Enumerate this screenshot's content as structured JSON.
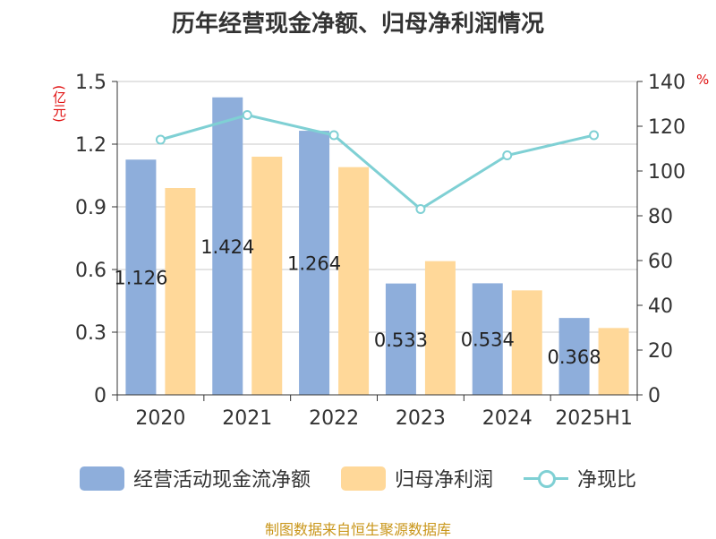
{
  "title": "历年经营现金净额、归母净利润情况",
  "unit_left": "(亿元)",
  "unit_right": "%",
  "footer": "制图数据来自恒生聚源数据库",
  "colors": {
    "ocf": "#8eaedb",
    "profit": "#ffd899",
    "ratio": "#7fd0d4"
  },
  "chart_data": {
    "type": "bar",
    "categories": [
      "2020",
      "2021",
      "2022",
      "2023",
      "2024",
      "2025H1"
    ],
    "series": [
      {
        "name": "经营活动现金流净额",
        "type": "bar",
        "axis": "left",
        "values": [
          1.126,
          1.424,
          1.264,
          0.533,
          0.534,
          0.368
        ],
        "labels": [
          "1.126",
          "1.424",
          "1.264",
          "0.533",
          "0.534",
          "0.368"
        ]
      },
      {
        "name": "归母净利润",
        "type": "bar",
        "axis": "left",
        "values": [
          0.99,
          1.14,
          1.09,
          0.64,
          0.5,
          0.32
        ]
      },
      {
        "name": "净现比",
        "type": "line",
        "axis": "right",
        "values": [
          114,
          125,
          116,
          83,
          107,
          116
        ]
      }
    ],
    "yleft": {
      "min": 0,
      "max": 1.5,
      "ticks": [
        "0",
        "0.3",
        "0.6",
        "0.9",
        "1.2",
        "1.5"
      ]
    },
    "yright": {
      "min": 0,
      "max": 140,
      "ticks": [
        "0",
        "20",
        "40",
        "60",
        "80",
        "100",
        "120",
        "140"
      ]
    },
    "grid": true,
    "legend_position": "bottom"
  }
}
